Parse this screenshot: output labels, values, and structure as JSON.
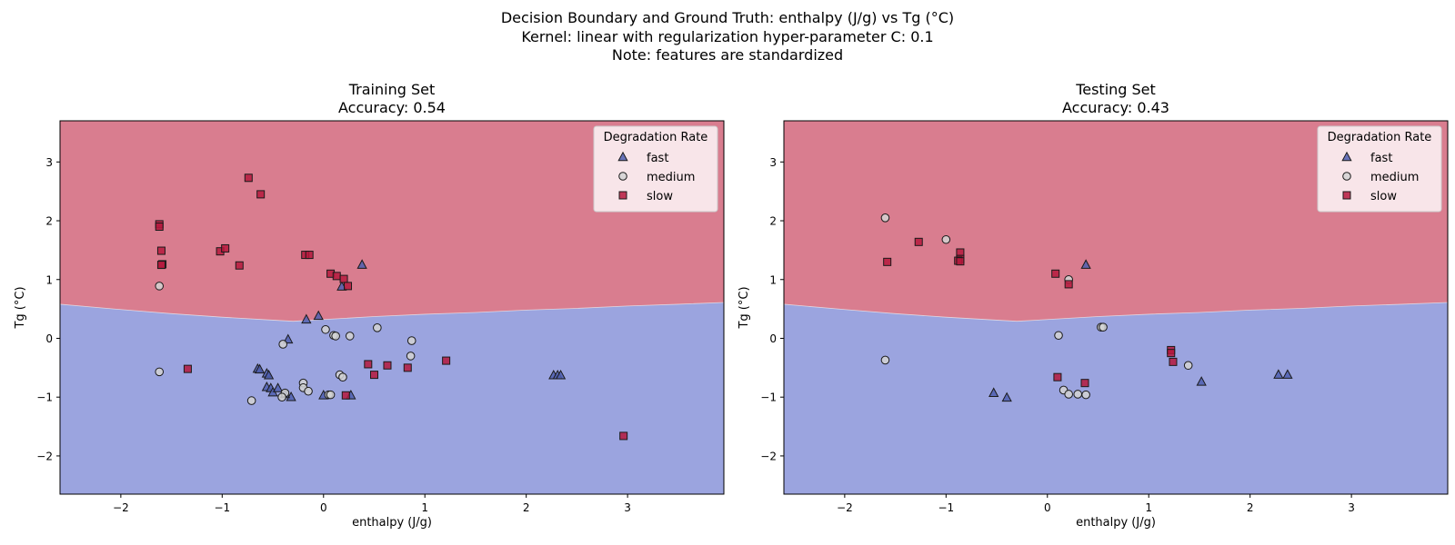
{
  "suptitle": {
    "line1": "Decision Boundary and Ground Truth: enthalpy (J/g) vs Tg (°C)",
    "line2": "Kernel: linear with regularization hyper-parameter C: 0.1",
    "line3": "Note: features are standardized"
  },
  "colors": {
    "region_upper": "#d97d8f",
    "region_lower": "#9ba4df",
    "fast": "#4f5fb0",
    "medium": "#d3d3d3",
    "slow": "#b5193d",
    "edge": "#1a1a1a"
  },
  "chart_data": [
    {
      "type": "scatter",
      "title": "Training Set",
      "subtitle": "Accuracy: 0.54",
      "xlabel": "enthalpy (J/g)",
      "ylabel": "Tg (°C)",
      "xlim": [
        -2.6,
        3.95
      ],
      "ylim": [
        -2.65,
        3.7
      ],
      "xticks": [
        -2,
        -1,
        0,
        1,
        2,
        3
      ],
      "yticks": [
        -2,
        -1,
        0,
        1,
        2,
        3
      ],
      "grid": false,
      "legend": {
        "title": "Degradation Rate",
        "position": "top-right",
        "entries": [
          "fast",
          "medium",
          "slow"
        ]
      },
      "boundary": [
        [
          -2.6,
          0.58
        ],
        [
          -2.0,
          0.49
        ],
        [
          -1.5,
          0.42
        ],
        [
          -1.0,
          0.36
        ],
        [
          -0.5,
          0.31
        ],
        [
          -0.3,
          0.29
        ],
        [
          0.0,
          0.32
        ],
        [
          0.5,
          0.37
        ],
        [
          1.0,
          0.41
        ],
        [
          1.5,
          0.44
        ],
        [
          2.0,
          0.48
        ],
        [
          2.5,
          0.51
        ],
        [
          3.0,
          0.55
        ],
        [
          3.5,
          0.58
        ],
        [
          3.95,
          0.61
        ]
      ],
      "series": [
        {
          "name": "fast",
          "marker": "triangle",
          "points": [
            [
              0.38,
              1.25
            ],
            [
              0.18,
              0.88
            ],
            [
              -0.05,
              0.38
            ],
            [
              -0.17,
              0.32
            ],
            [
              -0.35,
              -0.02
            ],
            [
              -0.65,
              -0.52
            ],
            [
              -0.63,
              -0.53
            ],
            [
              -0.56,
              -0.6
            ],
            [
              -0.54,
              -0.63
            ],
            [
              -0.56,
              -0.83
            ],
            [
              -0.52,
              -0.85
            ],
            [
              -0.5,
              -0.92
            ],
            [
              -0.45,
              -0.85
            ],
            [
              -0.32,
              -1.0
            ],
            [
              -0.38,
              -0.95
            ],
            [
              0.0,
              -0.97
            ],
            [
              0.27,
              -0.97
            ],
            [
              2.27,
              -0.63
            ],
            [
              2.31,
              -0.63
            ],
            [
              2.34,
              -0.63
            ]
          ]
        },
        {
          "name": "medium",
          "marker": "circle",
          "points": [
            [
              -1.62,
              0.89
            ],
            [
              -1.62,
              -0.57
            ],
            [
              0.02,
              0.15
            ],
            [
              0.1,
              0.05
            ],
            [
              0.12,
              0.04
            ],
            [
              0.26,
              0.04
            ],
            [
              0.53,
              0.18
            ],
            [
              0.87,
              -0.04
            ],
            [
              0.86,
              -0.3
            ],
            [
              -0.4,
              -0.1
            ],
            [
              -0.2,
              -0.76
            ],
            [
              -0.2,
              -0.84
            ],
            [
              -0.15,
              -0.9
            ],
            [
              -0.38,
              -0.93
            ],
            [
              -0.41,
              -1.0
            ],
            [
              -0.71,
              -1.06
            ],
            [
              0.05,
              -0.96
            ],
            [
              0.07,
              -0.96
            ],
            [
              0.16,
              -0.62
            ],
            [
              0.19,
              -0.66
            ]
          ]
        },
        {
          "name": "slow",
          "marker": "square",
          "points": [
            [
              -0.74,
              2.73
            ],
            [
              -0.62,
              2.45
            ],
            [
              -1.62,
              1.94
            ],
            [
              -1.62,
              1.9
            ],
            [
              -1.6,
              1.49
            ],
            [
              -1.59,
              1.26
            ],
            [
              -1.6,
              1.25
            ],
            [
              -1.02,
              1.48
            ],
            [
              -0.97,
              1.53
            ],
            [
              -0.83,
              1.24
            ],
            [
              -0.18,
              1.42
            ],
            [
              -0.14,
              1.42
            ],
            [
              0.07,
              1.1
            ],
            [
              0.13,
              1.06
            ],
            [
              0.2,
              1.01
            ],
            [
              0.24,
              0.89
            ],
            [
              -1.34,
              -0.52
            ],
            [
              0.44,
              -0.44
            ],
            [
              0.5,
              -0.62
            ],
            [
              0.63,
              -0.46
            ],
            [
              0.83,
              -0.5
            ],
            [
              1.21,
              -0.38
            ],
            [
              0.22,
              -0.97
            ],
            [
              2.96,
              -1.66
            ]
          ]
        }
      ]
    },
    {
      "type": "scatter",
      "title": "Testing Set",
      "subtitle": "Accuracy: 0.43",
      "xlabel": "enthalpy (J/g)",
      "ylabel": "Tg (°C)",
      "xlim": [
        -2.6,
        3.95
      ],
      "ylim": [
        -2.65,
        3.7
      ],
      "xticks": [
        -2,
        -1,
        0,
        1,
        2,
        3
      ],
      "yticks": [
        -2,
        -1,
        0,
        1,
        2,
        3
      ],
      "grid": false,
      "legend": {
        "title": "Degradation Rate",
        "position": "top-right",
        "entries": [
          "fast",
          "medium",
          "slow"
        ]
      },
      "boundary": [
        [
          -2.6,
          0.58
        ],
        [
          -2.0,
          0.49
        ],
        [
          -1.5,
          0.42
        ],
        [
          -1.0,
          0.36
        ],
        [
          -0.5,
          0.31
        ],
        [
          -0.3,
          0.29
        ],
        [
          0.0,
          0.32
        ],
        [
          0.5,
          0.37
        ],
        [
          1.0,
          0.41
        ],
        [
          1.5,
          0.44
        ],
        [
          2.0,
          0.48
        ],
        [
          2.5,
          0.51
        ],
        [
          3.0,
          0.55
        ],
        [
          3.5,
          0.58
        ],
        [
          3.95,
          0.61
        ]
      ],
      "series": [
        {
          "name": "fast",
          "marker": "triangle",
          "points": [
            [
              0.38,
              1.25
            ],
            [
              -0.53,
              -0.93
            ],
            [
              -0.4,
              -1.01
            ],
            [
              1.52,
              -0.74
            ],
            [
              2.28,
              -0.62
            ],
            [
              2.37,
              -0.62
            ]
          ]
        },
        {
          "name": "medium",
          "marker": "circle",
          "points": [
            [
              -1.6,
              2.05
            ],
            [
              -1.0,
              1.68
            ],
            [
              0.21,
              1.0
            ],
            [
              0.11,
              0.05
            ],
            [
              0.53,
              0.19
            ],
            [
              0.55,
              0.19
            ],
            [
              -1.6,
              -0.37
            ],
            [
              0.16,
              -0.88
            ],
            [
              0.21,
              -0.95
            ],
            [
              0.3,
              -0.95
            ],
            [
              0.38,
              -0.96
            ],
            [
              1.39,
              -0.46
            ]
          ]
        },
        {
          "name": "slow",
          "marker": "square",
          "points": [
            [
              -1.58,
              1.3
            ],
            [
              -1.27,
              1.64
            ],
            [
              -0.86,
              1.46
            ],
            [
              -0.86,
              1.35
            ],
            [
              -0.88,
              1.32
            ],
            [
              -0.86,
              1.31
            ],
            [
              0.08,
              1.1
            ],
            [
              0.21,
              0.92
            ],
            [
              1.22,
              -0.2
            ],
            [
              1.22,
              -0.25
            ],
            [
              1.24,
              -0.4
            ],
            [
              0.1,
              -0.66
            ],
            [
              0.37,
              -0.76
            ]
          ]
        }
      ]
    }
  ]
}
